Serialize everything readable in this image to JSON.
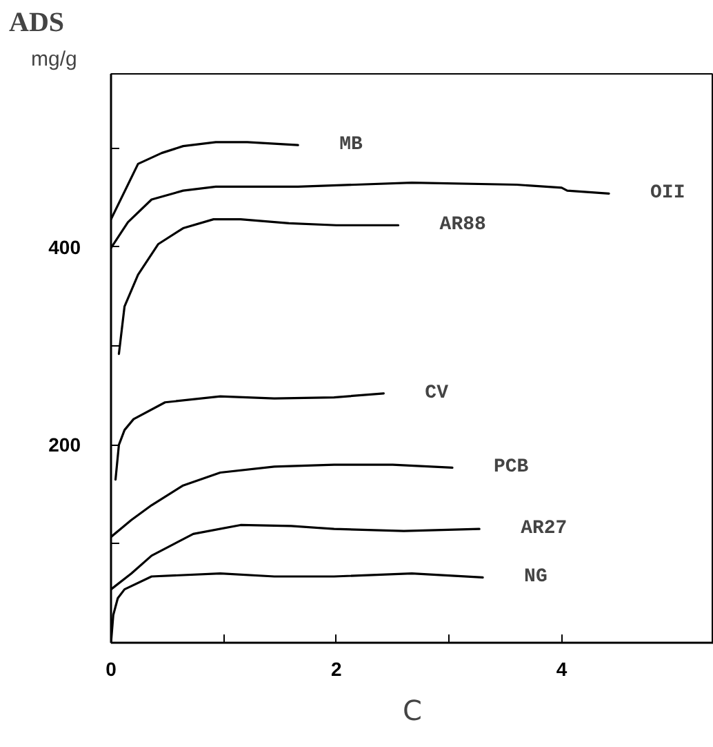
{
  "chart_data": {
    "type": "line",
    "xlabel": "C",
    "ylabel": "ADS",
    "annotations": [
      "mg/g"
    ],
    "xlim": [
      0,
      5.35
    ],
    "ylim": [
      0,
      575
    ],
    "xticks": [
      0,
      {
        "value": 1,
        "label": null
      },
      2,
      {
        "value": 3,
        "label": null
      },
      4
    ],
    "yticks": [
      {
        "value": 100,
        "label": null
      },
      200,
      {
        "value": 300,
        "label": null
      },
      400,
      {
        "value": 500,
        "label": null
      }
    ],
    "grid": false,
    "series": [
      {
        "name": "MB",
        "color": "#000000",
        "x": [
          0,
          0.24,
          0.45,
          0.64,
          0.93,
          1.21,
          1.66
        ],
        "values": [
          428,
          484,
          495,
          502,
          506,
          506,
          503
        ]
      },
      {
        "name": "OII",
        "color": "#000000",
        "x": [
          0,
          0.15,
          0.36,
          0.64,
          0.93,
          1.66,
          2.67,
          3.6,
          4.0,
          4.05,
          4.42
        ],
        "values": [
          399,
          425,
          448,
          457,
          461,
          461,
          465,
          463,
          460,
          457,
          454
        ]
      },
      {
        "name": "AR88",
        "color": "#000000",
        "x": [
          0.07,
          0.12,
          0.24,
          0.42,
          0.64,
          0.91,
          1.15,
          1.58,
          2.0,
          2.55
        ],
        "values": [
          292,
          340,
          372,
          403,
          419,
          428,
          428,
          424,
          422,
          422
        ]
      },
      {
        "name": "CV",
        "color": "#000000",
        "x": [
          0.04,
          0.07,
          0.12,
          0.2,
          0.48,
          0.97,
          1.45,
          1.98,
          2.42
        ],
        "values": [
          165,
          200,
          215,
          226,
          243,
          249,
          247,
          248,
          252
        ]
      },
      {
        "name": "PCB",
        "color": "#000000",
        "x": [
          0,
          0.18,
          0.36,
          0.64,
          0.97,
          1.45,
          1.98,
          2.5,
          3.03
        ],
        "values": [
          107,
          124,
          139,
          159,
          172,
          178,
          180,
          180,
          177
        ]
      },
      {
        "name": "AR27",
        "color": "#000000",
        "x": [
          0,
          0.18,
          0.36,
          0.73,
          1.15,
          1.6,
          1.98,
          2.6,
          3.27
        ],
        "values": [
          54,
          70,
          88,
          110,
          119,
          118,
          115,
          113,
          115
        ]
      },
      {
        "name": "NG",
        "color": "#000000",
        "x": [
          0,
          0.02,
          0.06,
          0.12,
          0.36,
          0.97,
          1.45,
          1.98,
          2.67,
          3.3
        ],
        "values": [
          0,
          28,
          45,
          54,
          67,
          70,
          67,
          67,
          70,
          66
        ]
      }
    ]
  }
}
